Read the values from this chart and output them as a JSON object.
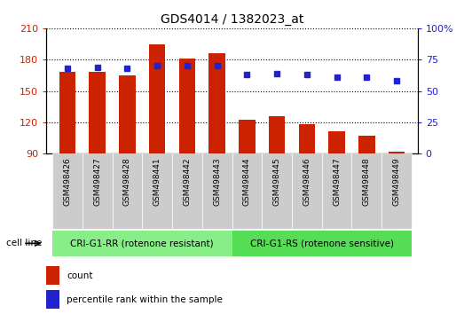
{
  "title": "GDS4014 / 1382023_at",
  "samples": [
    "GSM498426",
    "GSM498427",
    "GSM498428",
    "GSM498441",
    "GSM498442",
    "GSM498443",
    "GSM498444",
    "GSM498445",
    "GSM498446",
    "GSM498447",
    "GSM498448",
    "GSM498449"
  ],
  "counts": [
    168,
    168,
    165,
    195,
    181,
    186,
    123,
    126,
    118,
    112,
    107,
    92
  ],
  "percentile_ranks": [
    68,
    69,
    68,
    70,
    70,
    70,
    63,
    64,
    63,
    61,
    61,
    58
  ],
  "ylim_left": [
    90,
    210
  ],
  "ylim_right": [
    0,
    100
  ],
  "yticks_left": [
    90,
    120,
    150,
    180,
    210
  ],
  "yticks_right": [
    0,
    25,
    50,
    75,
    100
  ],
  "bar_color": "#CC2200",
  "dot_color": "#2222CC",
  "grid_color": "#000000",
  "group1_label": "CRI-G1-RR (rotenone resistant)",
  "group2_label": "CRI-G1-RS (rotenone sensitive)",
  "group1_color": "#88EE88",
  "group2_color": "#55DD55",
  "group1_count": 6,
  "group2_count": 6,
  "cell_line_label": "cell line",
  "legend_count_label": "count",
  "legend_percentile_label": "percentile rank within the sample",
  "bar_width": 0.55,
  "tick_area_color": "#CCCCCC",
  "background_color": "#FFFFFF",
  "title_fontsize": 10,
  "axis_fontsize": 8,
  "label_fontsize": 7.5
}
